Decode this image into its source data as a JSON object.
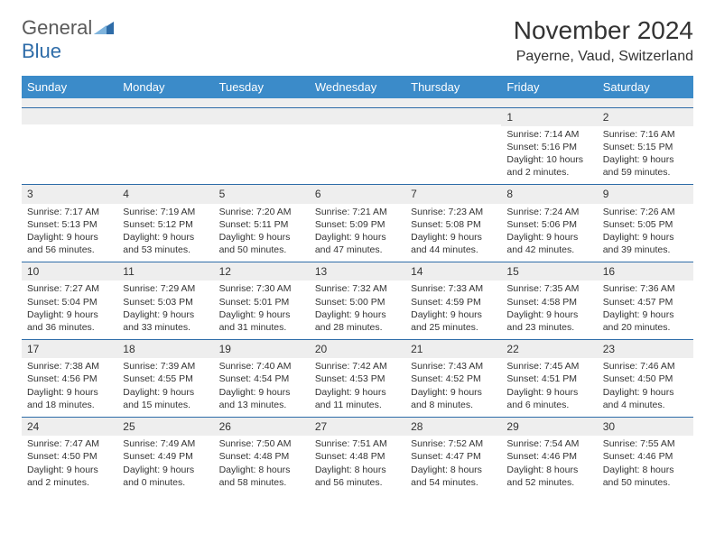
{
  "brand": {
    "general": "General",
    "blue": "Blue"
  },
  "title": "November 2024",
  "location": "Payerne, Vaud, Switzerland",
  "colors": {
    "header_bg": "#3b8bc9",
    "header_text": "#ffffff",
    "daynum_bg": "#eeeeee",
    "border": "#2e6ca8",
    "brand_gray": "#5a5a5a",
    "brand_blue": "#2e6ca8"
  },
  "day_headers": [
    "Sunday",
    "Monday",
    "Tuesday",
    "Wednesday",
    "Thursday",
    "Friday",
    "Saturday"
  ],
  "weeks": [
    [
      null,
      null,
      null,
      null,
      null,
      {
        "n": "1",
        "sr": "Sunrise: 7:14 AM",
        "ss": "Sunset: 5:16 PM",
        "dl": "Daylight: 10 hours and 2 minutes."
      },
      {
        "n": "2",
        "sr": "Sunrise: 7:16 AM",
        "ss": "Sunset: 5:15 PM",
        "dl": "Daylight: 9 hours and 59 minutes."
      }
    ],
    [
      {
        "n": "3",
        "sr": "Sunrise: 7:17 AM",
        "ss": "Sunset: 5:13 PM",
        "dl": "Daylight: 9 hours and 56 minutes."
      },
      {
        "n": "4",
        "sr": "Sunrise: 7:19 AM",
        "ss": "Sunset: 5:12 PM",
        "dl": "Daylight: 9 hours and 53 minutes."
      },
      {
        "n": "5",
        "sr": "Sunrise: 7:20 AM",
        "ss": "Sunset: 5:11 PM",
        "dl": "Daylight: 9 hours and 50 minutes."
      },
      {
        "n": "6",
        "sr": "Sunrise: 7:21 AM",
        "ss": "Sunset: 5:09 PM",
        "dl": "Daylight: 9 hours and 47 minutes."
      },
      {
        "n": "7",
        "sr": "Sunrise: 7:23 AM",
        "ss": "Sunset: 5:08 PM",
        "dl": "Daylight: 9 hours and 44 minutes."
      },
      {
        "n": "8",
        "sr": "Sunrise: 7:24 AM",
        "ss": "Sunset: 5:06 PM",
        "dl": "Daylight: 9 hours and 42 minutes."
      },
      {
        "n": "9",
        "sr": "Sunrise: 7:26 AM",
        "ss": "Sunset: 5:05 PM",
        "dl": "Daylight: 9 hours and 39 minutes."
      }
    ],
    [
      {
        "n": "10",
        "sr": "Sunrise: 7:27 AM",
        "ss": "Sunset: 5:04 PM",
        "dl": "Daylight: 9 hours and 36 minutes."
      },
      {
        "n": "11",
        "sr": "Sunrise: 7:29 AM",
        "ss": "Sunset: 5:03 PM",
        "dl": "Daylight: 9 hours and 33 minutes."
      },
      {
        "n": "12",
        "sr": "Sunrise: 7:30 AM",
        "ss": "Sunset: 5:01 PM",
        "dl": "Daylight: 9 hours and 31 minutes."
      },
      {
        "n": "13",
        "sr": "Sunrise: 7:32 AM",
        "ss": "Sunset: 5:00 PM",
        "dl": "Daylight: 9 hours and 28 minutes."
      },
      {
        "n": "14",
        "sr": "Sunrise: 7:33 AM",
        "ss": "Sunset: 4:59 PM",
        "dl": "Daylight: 9 hours and 25 minutes."
      },
      {
        "n": "15",
        "sr": "Sunrise: 7:35 AM",
        "ss": "Sunset: 4:58 PM",
        "dl": "Daylight: 9 hours and 23 minutes."
      },
      {
        "n": "16",
        "sr": "Sunrise: 7:36 AM",
        "ss": "Sunset: 4:57 PM",
        "dl": "Daylight: 9 hours and 20 minutes."
      }
    ],
    [
      {
        "n": "17",
        "sr": "Sunrise: 7:38 AM",
        "ss": "Sunset: 4:56 PM",
        "dl": "Daylight: 9 hours and 18 minutes."
      },
      {
        "n": "18",
        "sr": "Sunrise: 7:39 AM",
        "ss": "Sunset: 4:55 PM",
        "dl": "Daylight: 9 hours and 15 minutes."
      },
      {
        "n": "19",
        "sr": "Sunrise: 7:40 AM",
        "ss": "Sunset: 4:54 PM",
        "dl": "Daylight: 9 hours and 13 minutes."
      },
      {
        "n": "20",
        "sr": "Sunrise: 7:42 AM",
        "ss": "Sunset: 4:53 PM",
        "dl": "Daylight: 9 hours and 11 minutes."
      },
      {
        "n": "21",
        "sr": "Sunrise: 7:43 AM",
        "ss": "Sunset: 4:52 PM",
        "dl": "Daylight: 9 hours and 8 minutes."
      },
      {
        "n": "22",
        "sr": "Sunrise: 7:45 AM",
        "ss": "Sunset: 4:51 PM",
        "dl": "Daylight: 9 hours and 6 minutes."
      },
      {
        "n": "23",
        "sr": "Sunrise: 7:46 AM",
        "ss": "Sunset: 4:50 PM",
        "dl": "Daylight: 9 hours and 4 minutes."
      }
    ],
    [
      {
        "n": "24",
        "sr": "Sunrise: 7:47 AM",
        "ss": "Sunset: 4:50 PM",
        "dl": "Daylight: 9 hours and 2 minutes."
      },
      {
        "n": "25",
        "sr": "Sunrise: 7:49 AM",
        "ss": "Sunset: 4:49 PM",
        "dl": "Daylight: 9 hours and 0 minutes."
      },
      {
        "n": "26",
        "sr": "Sunrise: 7:50 AM",
        "ss": "Sunset: 4:48 PM",
        "dl": "Daylight: 8 hours and 58 minutes."
      },
      {
        "n": "27",
        "sr": "Sunrise: 7:51 AM",
        "ss": "Sunset: 4:48 PM",
        "dl": "Daylight: 8 hours and 56 minutes."
      },
      {
        "n": "28",
        "sr": "Sunrise: 7:52 AM",
        "ss": "Sunset: 4:47 PM",
        "dl": "Daylight: 8 hours and 54 minutes."
      },
      {
        "n": "29",
        "sr": "Sunrise: 7:54 AM",
        "ss": "Sunset: 4:46 PM",
        "dl": "Daylight: 8 hours and 52 minutes."
      },
      {
        "n": "30",
        "sr": "Sunrise: 7:55 AM",
        "ss": "Sunset: 4:46 PM",
        "dl": "Daylight: 8 hours and 50 minutes."
      }
    ]
  ]
}
